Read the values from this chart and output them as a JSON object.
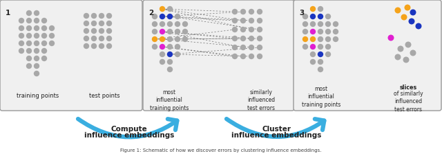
{
  "gray": "#a8a8a8",
  "orange": "#f5a31a",
  "blue": "#1a35c0",
  "magenta": "#e020d0",
  "arrow_color": "#3aaee0",
  "bg_color": "#ffffff",
  "panel_bg": "#f0f0f0",
  "text_color": "#222222",
  "caption_color": "#444444",
  "panel1_label": "1",
  "panel2_label": "2",
  "panel3_label": "3",
  "panel1_text1": "training points",
  "panel1_text2": "test points",
  "panel2_text1": "most\ninfluential\ntraining points",
  "panel2_text2": "similarly\ninfluenced\ntest errors",
  "panel3_text1": "most\ninfluential\ntraining points",
  "panel3_text2_bold": "slices",
  "panel3_text2_rest": "\nof similarly\ninfluenced\ntest errors",
  "arrow1_line1": "Compute",
  "arrow1_line2": "influence embeddings",
  "arrow2_line1": "Cluster",
  "arrow2_line2": "influence embeddings",
  "caption": "Figure 1: Schematic of how we discover errors by clustering influence embeddings."
}
